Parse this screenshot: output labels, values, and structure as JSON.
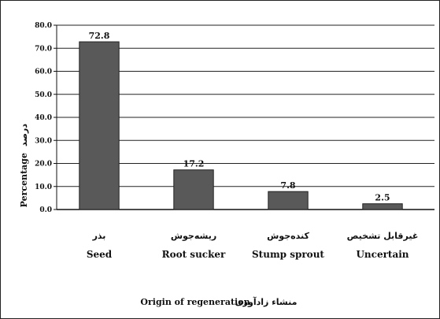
{
  "chart_data": {
    "type": "bar",
    "title": "",
    "categories": [
      "Seed",
      "Root sucker",
      "Stump sprout",
      "Uncertain"
    ],
    "categories_fa": [
      "بذر",
      "ریشه‌جوش",
      "کنده‌جوش",
      "غیرقابل تشخیص"
    ],
    "values": [
      72.8,
      17.2,
      7.8,
      2.5
    ],
    "value_labels": [
      "72.8",
      "17.2",
      "7.8",
      "2.5"
    ],
    "ylabel": "Percentage",
    "ylabel_fa": "درصد",
    "xlabel": "Origin of regeneration",
    "xlabel_fa": "منشاء زادآوری",
    "ylim": [
      0,
      80
    ],
    "yticks": [
      "0.0",
      "10.0",
      "20.0",
      "30.0",
      "40.0",
      "50.0",
      "60.0",
      "70.0",
      "80.0"
    ],
    "grid": true,
    "legend": "none",
    "bar_color": "#595959",
    "bar_border": "#222222"
  }
}
